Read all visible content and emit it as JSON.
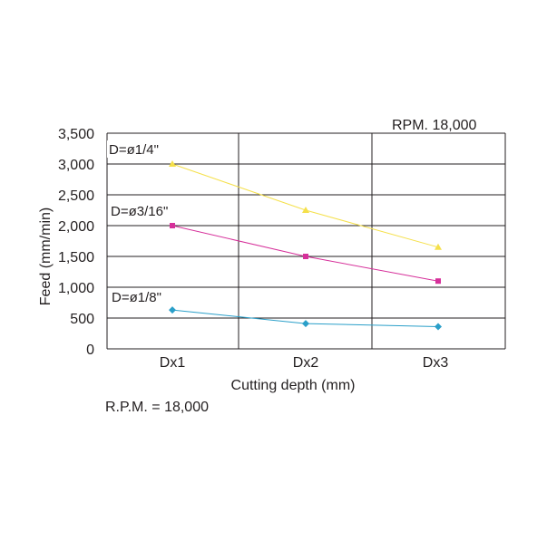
{
  "chart_data": {
    "type": "line",
    "categories": [
      "Dx1",
      "Dx2",
      "Dx3"
    ],
    "xlabel": "Cutting depth (mm)",
    "ylabel": "Feed (mm/min)",
    "ylim": [
      0,
      3500
    ],
    "yticks": [
      0,
      500,
      1000,
      1500,
      2000,
      2500,
      3000,
      3500
    ],
    "ytick_labels": [
      "0",
      "500",
      "1,000",
      "1,500",
      "2,000",
      "2,500",
      "3,000",
      "3,500"
    ],
    "grid": true,
    "series": [
      {
        "name": "D=ø1/4\"",
        "values": [
          3000,
          2250,
          1650
        ],
        "color": "#f5e04a",
        "marker": "triangle"
      },
      {
        "name": "D=ø3/16\"",
        "values": [
          2000,
          1500,
          1100
        ],
        "color": "#d6309a",
        "marker": "square"
      },
      {
        "name": "D=ø1/8\"",
        "values": [
          630,
          410,
          360
        ],
        "color": "#2a9fc9",
        "marker": "diamond"
      }
    ],
    "annotation_top": "RPM. 18,000"
  },
  "footer_note": "R.P.M. = 18,000"
}
